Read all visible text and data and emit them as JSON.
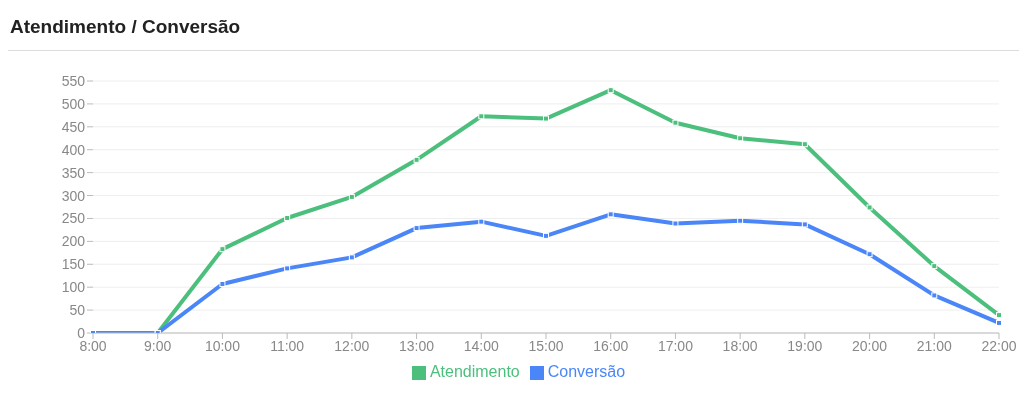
{
  "chart_data": {
    "type": "line",
    "title": "Atendimento / Conversão",
    "categories": [
      "8:00",
      "9:00",
      "10:00",
      "11:00",
      "12:00",
      "13:00",
      "14:00",
      "15:00",
      "16:00",
      "17:00",
      "18:00",
      "19:00",
      "20:00",
      "21:00",
      "22:00"
    ],
    "series": [
      {
        "name": "Atendimento",
        "color": "#4cbf7d",
        "values": [
          0,
          0,
          183,
          251,
          297,
          378,
          473,
          468,
          530,
          459,
          425,
          412,
          274,
          146,
          39
        ]
      },
      {
        "name": "Conversão",
        "color": "#4a86f7",
        "values": [
          0,
          0,
          107,
          141,
          165,
          229,
          243,
          212,
          259,
          239,
          245,
          237,
          172,
          82,
          22
        ]
      }
    ],
    "ylim": [
      0,
      550
    ],
    "yticks": [
      0,
      50,
      100,
      150,
      200,
      250,
      300,
      350,
      400,
      450,
      500,
      550
    ],
    "grid": "y",
    "legend": "bottom",
    "marker": "square",
    "line_style": "solid"
  }
}
